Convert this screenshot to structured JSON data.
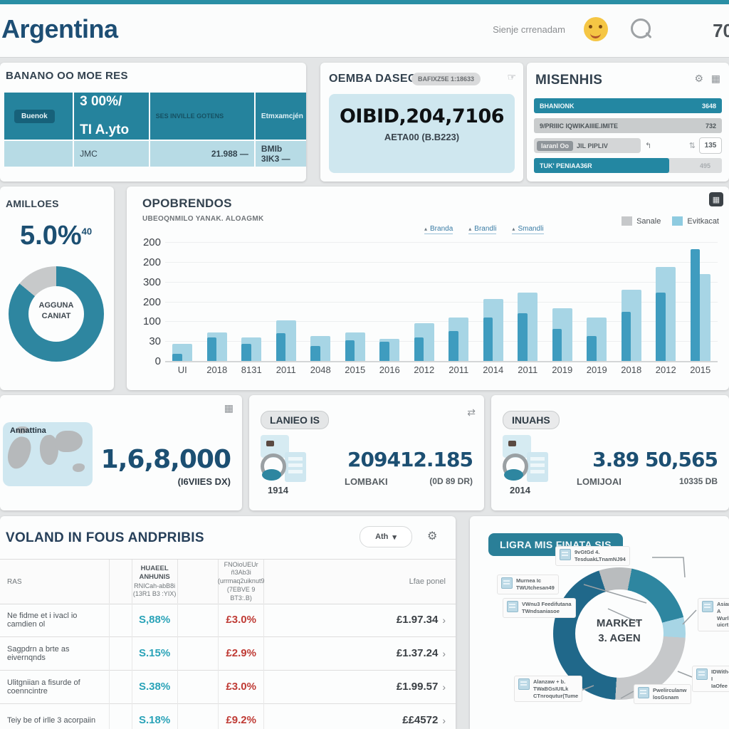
{
  "colors": {
    "accent_teal": "#2a8fa5",
    "navy": "#1c4f72",
    "table_header_teal": "#25839d",
    "light_blue_fill": "#cfe7ef",
    "bar_light": "#a7d5e5",
    "bar_medium": "#3f9cbf",
    "donut_teal": "#2e86a0",
    "donut_dark": "#20688a",
    "gray_slice": "#c7c9ca",
    "red_text": "#bf3b35",
    "teal_value": "#2aa3b8"
  },
  "icons": {
    "gear": "⚙",
    "grid": "▦",
    "swap": "⇄",
    "sort": "⇅",
    "reply": "↰",
    "pointer": "☞",
    "chevron_down": "▾",
    "tri": "▴",
    "arrow_right": "›"
  },
  "header": {
    "title": "Argentina",
    "user_label": "Sienje crrenadam",
    "badge": "70"
  },
  "moeres": {
    "title": "BANANO OO MOE RES",
    "chip": "Buenok",
    "col2_l1": "3 00%/",
    "col2_l2": "TI A.yto",
    "col3": "SES INVILLE GOTENS",
    "col4": "Etmxamcjén",
    "body": {
      "c2": "JMC",
      "c3": "21.988 —",
      "c4": "BMIb 3IK3 —"
    }
  },
  "demba": {
    "title": "OEMBA DASEGE",
    "pill": "BAFIXZ5E 1:18633",
    "big_number": "OIBID,204,7106",
    "caption": "AETA00 (B.B223)"
  },
  "misenhis": {
    "title": "MISENHIS",
    "rows": [
      {
        "label": "BHANIONK",
        "value": "3648"
      },
      {
        "label": "9/PRIIIC IQWIKAIIIE.IMITE",
        "value": "732"
      },
      {
        "chip": "Iaranl Oo",
        "label": "JIL PIPLIV",
        "value": "135"
      },
      {
        "label": "TUK' PENIAA36R",
        "value": "495"
      }
    ]
  },
  "amilloes": {
    "title": "AMILLOES",
    "value": "5.0%",
    "value_sup": "40",
    "center_l1": "AGGUNA",
    "center_l2": "CANIAT"
  },
  "opobrendos": {
    "title": "OPOBRENDOS",
    "subtitle": "UBEOQNMILO YANAK. ALOAGMK",
    "links": [
      "Branda",
      "Brandli",
      "Smandli"
    ],
    "legend": [
      {
        "label": "Sanale",
        "color": "#c6c8ca"
      },
      {
        "label": "Evitkacat",
        "color": "#8ecbe0"
      }
    ]
  },
  "chart_data": [
    {
      "type": "bar",
      "title": "OPOBRENDOS",
      "subtitle": "UBEOQNMILO YANAK. ALOAGMK",
      "categories": [
        "UI",
        "2018",
        "8131",
        "2011",
        "2048",
        "2015",
        "2016",
        "2012",
        "2011",
        "2014",
        "2011",
        "2019",
        "2019",
        "2018",
        "2012",
        "2015"
      ],
      "series": [
        {
          "name": "Evitkacat",
          "color": "#a7d5e5",
          "values": [
            38,
            62,
            52,
            88,
            55,
            62,
            48,
            82,
            95,
            135,
            150,
            115,
            95,
            155,
            205,
            190
          ]
        },
        {
          "name": "Sanale",
          "color": "#3f9cbf",
          "values": [
            15,
            52,
            38,
            60,
            32,
            45,
            42,
            52,
            65,
            95,
            105,
            70,
            55,
            108,
            150,
            245
          ]
        }
      ],
      "y_ticks": [
        "200",
        "200",
        "300",
        "200",
        "100",
        "30",
        "0"
      ],
      "ylim": [
        0,
        260
      ],
      "grid": true,
      "legend_position": "top-right"
    },
    {
      "type": "pie",
      "title": "AMILLOES",
      "labels": [
        "main",
        "remainder"
      ],
      "values": [
        86,
        14
      ],
      "colors": [
        "#2e86a0",
        "#c7c9ca"
      ],
      "center_label": "AGGUNA CANIAT",
      "callout": "5.0%"
    },
    {
      "type": "pie",
      "title": "LIGRA MIS FINATA SIS",
      "labels": [
        "dark-left",
        "gray-top",
        "teal-right",
        "light-sliver",
        "gray-bottom-right"
      ],
      "values": [
        44,
        8,
        18,
        5,
        25
      ],
      "colors": [
        "#20688a",
        "#b9bcbe",
        "#2e86a0",
        "#a7d5e5",
        "#c6c8ca"
      ],
      "center_label": "MARKET 3. AGEN"
    }
  ],
  "map_panel": {
    "region_label": "Annattina",
    "value": "1,6,8,000",
    "caption": "(I6VIIES DX)"
  },
  "lanieo": {
    "title": "LANIEO IS",
    "year": "1914",
    "value": "209412.185",
    "caption_left": "LOMBAKI",
    "caption_right": "(0D 89 DR)"
  },
  "inuahs": {
    "title": "INUAHS",
    "year": "2014",
    "value": "3.89 50,565",
    "caption_left": "LOMIJOAI",
    "caption_right": "10335 DB"
  },
  "table_panel": {
    "title": "VOLAND IN FOUS ANDPRIBIS",
    "dropdown_label": "Ath",
    "h1": "RAS",
    "h2": {
      "l1": "HUAEEL ANHUNIS",
      "l2": "RNICah-abB8i",
      "l3": "(13R1 B3 :YIX)"
    },
    "h4": {
      "l1": "FNOioUEUr ñ3Ab3i",
      "l2": "(urrmaq2uiknut9",
      "l3": "(7EBVE 9 BT3:.B)"
    },
    "h5": "Lfae ponel",
    "rows": [
      {
        "name": "Ne fidme et i ivacl io camdien ol",
        "pct1": "S,88%",
        "pct2": "£3.0%",
        "value": "£1.97.34"
      },
      {
        "name": "Sagpdrn a brte as eivernqnds",
        "pct1": "S.15%",
        "pct2": "£2.9%",
        "value": "£1.37.24"
      },
      {
        "name": "Ulitgniian a fisurde of coenncintre",
        "pct1": "S.38%",
        "pct2": "£3.0%",
        "value": "£1.99.57"
      },
      {
        "name": "Teiy be of irlle 3 acorpaiin",
        "pct1": "S.18%",
        "pct2": "£9.2%",
        "value": "££4572"
      }
    ]
  },
  "market": {
    "title": "LIGRA MIS FINATA SIS",
    "center_l1": "MARKET",
    "center_l2": "3. AGEN",
    "nodes": [
      {
        "l1": "9vGtGd 4.",
        "l2": "TesduakLTnamNJ94"
      },
      {
        "l1": "Murnea Ic",
        "l2": "TWUtchesan49"
      },
      {
        "l1": "VWnu3 Feedifutana",
        "l2": "TWndsaniasoe"
      },
      {
        "l1": "Asiana A",
        "l2": "Wurlle-uicrt"
      },
      {
        "l1": "Alanzaw + b.",
        "l2": "TWaBGsIUILk",
        "l3": "CTnroqutur(Tume"
      },
      {
        "l1": "Pwelirculanw",
        "l2": "losGsnam"
      },
      {
        "l1": "IDWith-I",
        "l2": "IaOfee"
      }
    ]
  }
}
